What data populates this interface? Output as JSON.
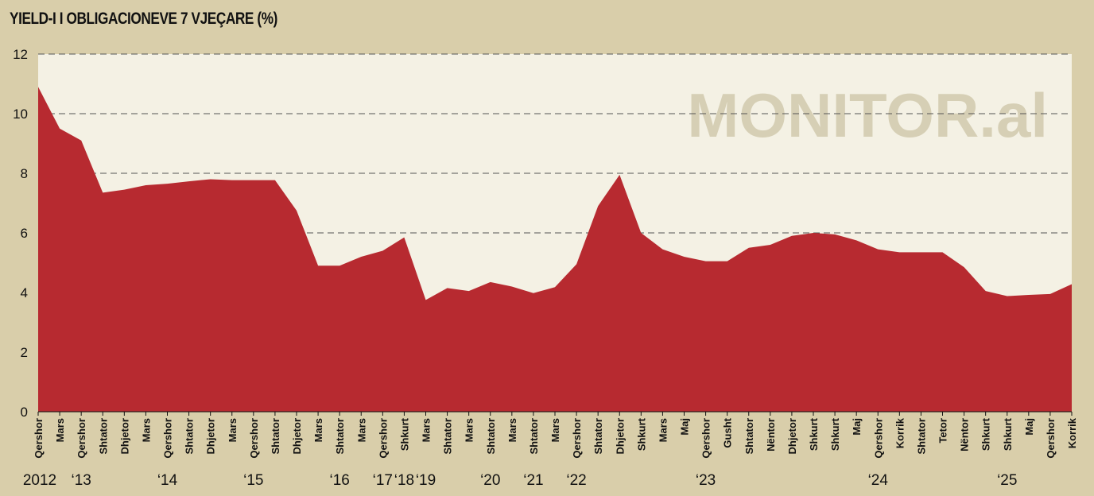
{
  "title": "YIELD-I I OBLIGACIONEVE 7 VJEÇARE (%)",
  "watermark": "MONITOR.al",
  "colors": {
    "fill": "#b72a30",
    "plot_bg": "#f4f1e4",
    "page_bg": "#d9ceaa",
    "grid": "#555555"
  },
  "chart_data": {
    "type": "area",
    "title": "YIELD-I I OBLIGACIONEVE 7 VJEÇARE (%)",
    "xlabel": "",
    "ylabel": "",
    "ylim": [
      0,
      12
    ],
    "yticks": [
      "0",
      "2",
      "4",
      "6",
      "8",
      "10",
      "12"
    ],
    "grid": "dashed horizontal at 6, 8, 10, 12",
    "categories": [
      "Qershor",
      "Mars",
      "Qershor",
      "Shtator",
      "Dhjetor",
      "Mars",
      "Qershor",
      "Shtator",
      "Dhjetor",
      "Mars",
      "Qershor",
      "Shtator",
      "Dhjetor",
      "Mars",
      "Shtator",
      "Mars",
      "Qershor",
      "Shkurt",
      "Mars",
      "Shtator",
      "Mars",
      "Shtator",
      "Mars",
      "Shtator",
      "Mars",
      "Qershor",
      "Shtator",
      "Dhjetor",
      "Shkurt",
      "Mars",
      "Maj",
      "Qershor",
      "Gusht",
      "Shtator",
      "Nëntor",
      "Dhjetor",
      "Shkurt",
      "Shkurt",
      "Maj",
      "Qershor",
      "Korrik",
      "Shtator",
      "Tetor",
      "Nëntor",
      "Shkurt",
      "Shkurt",
      "Maj",
      "Qershor",
      "Korrik"
    ],
    "values": [
      10.9,
      9.5,
      9.1,
      7.35,
      7.45,
      7.6,
      7.65,
      7.73,
      7.8,
      7.77,
      7.77,
      7.77,
      6.75,
      4.9,
      4.9,
      5.2,
      5.4,
      5.85,
      3.75,
      4.15,
      4.05,
      4.35,
      4.2,
      3.98,
      4.18,
      4.95,
      6.9,
      7.95,
      6.0,
      5.45,
      5.2,
      5.05,
      5.05,
      5.5,
      5.6,
      5.9,
      6.0,
      5.95,
      5.75,
      5.45,
      5.35,
      5.35,
      5.35,
      4.85,
      4.05,
      3.88,
      3.92,
      3.95,
      4.28
    ],
    "year_labels": [
      {
        "label": "2012",
        "index": 0
      },
      {
        "label": "‘13",
        "index": 2
      },
      {
        "label": "‘14",
        "index": 6
      },
      {
        "label": "‘15",
        "index": 10
      },
      {
        "label": "‘16",
        "index": 14
      },
      {
        "label": "‘17",
        "index": 16
      },
      {
        "label": "‘18",
        "index": 17
      },
      {
        "label": "‘19",
        "index": 18
      },
      {
        "label": "‘20",
        "index": 21
      },
      {
        "label": "‘21",
        "index": 23
      },
      {
        "label": "‘22",
        "index": 25
      },
      {
        "label": "‘23",
        "index": 31
      },
      {
        "label": "‘24",
        "index": 39
      },
      {
        "label": "‘25",
        "index": 45
      }
    ]
  }
}
